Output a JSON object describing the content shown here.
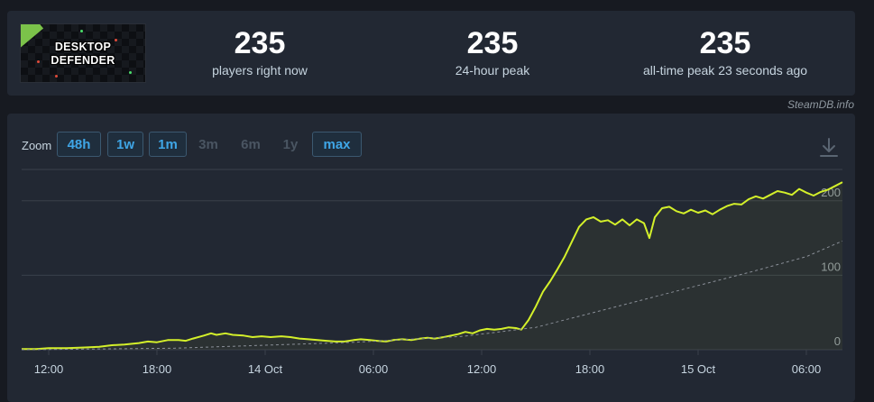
{
  "game": {
    "logo_line1": "DESKTOP",
    "logo_line2": "DEFENDER",
    "logo_accent": "#7bc24a"
  },
  "stats": [
    {
      "value": "235",
      "label": "players right now"
    },
    {
      "value": "235",
      "label": "24-hour peak"
    },
    {
      "value": "235",
      "label": "all-time peak 23 seconds ago"
    }
  ],
  "source": "SteamDB.info",
  "zoom": {
    "label": "Zoom",
    "buttons": [
      {
        "label": "48h",
        "active": true
      },
      {
        "label": "1w",
        "active": true
      },
      {
        "label": "1m",
        "active": true
      },
      {
        "label": "3m",
        "active": false
      },
      {
        "label": "6m",
        "active": false
      },
      {
        "label": "1y",
        "active": false
      },
      {
        "label": "max",
        "active": true
      }
    ]
  },
  "download_icon": "download-icon",
  "colors": {
    "line": "#d4f02a",
    "trend": "#8a8f98",
    "grid": "#3a404b",
    "background": "#222833"
  },
  "chart_data": {
    "type": "line",
    "ylim": [
      0,
      230
    ],
    "y_ticks": [
      0,
      100,
      200
    ],
    "x_ticks": [
      {
        "t": 3,
        "label": "12:00"
      },
      {
        "t": 9,
        "label": "18:00"
      },
      {
        "t": 15,
        "label": "14 Oct"
      },
      {
        "t": 21,
        "label": "06:00"
      },
      {
        "t": 27,
        "label": "12:00"
      },
      {
        "t": 33,
        "label": "18:00"
      },
      {
        "t": 39,
        "label": "15 Oct"
      },
      {
        "t": 45,
        "label": "06:00"
      }
    ],
    "xlim": [
      1.5,
      47
    ],
    "series": [
      {
        "style": "solid",
        "points": [
          [
            1.5,
            1
          ],
          [
            2.3,
            1
          ],
          [
            3.0,
            2
          ],
          [
            4.0,
            2
          ],
          [
            5.0,
            3
          ],
          [
            5.8,
            4
          ],
          [
            6.5,
            6
          ],
          [
            7.2,
            7
          ],
          [
            8.0,
            9
          ],
          [
            8.5,
            11
          ],
          [
            9.0,
            10
          ],
          [
            9.6,
            13
          ],
          [
            10.2,
            13
          ],
          [
            10.6,
            12
          ],
          [
            11.0,
            15
          ],
          [
            11.6,
            19
          ],
          [
            12.0,
            22
          ],
          [
            12.3,
            20
          ],
          [
            12.8,
            22
          ],
          [
            13.2,
            20
          ],
          [
            13.8,
            19
          ],
          [
            14.3,
            17
          ],
          [
            14.8,
            18
          ],
          [
            15.3,
            17
          ],
          [
            15.9,
            18
          ],
          [
            16.4,
            17
          ],
          [
            16.9,
            15
          ],
          [
            17.4,
            14
          ],
          [
            17.9,
            13
          ],
          [
            18.4,
            12
          ],
          [
            18.9,
            11
          ],
          [
            19.4,
            11
          ],
          [
            19.9,
            13
          ],
          [
            20.3,
            14
          ],
          [
            20.8,
            13
          ],
          [
            21.2,
            12
          ],
          [
            21.7,
            11
          ],
          [
            22.1,
            13
          ],
          [
            22.6,
            14
          ],
          [
            23.1,
            13
          ],
          [
            23.6,
            15
          ],
          [
            24.0,
            16
          ],
          [
            24.4,
            15
          ],
          [
            24.9,
            17
          ],
          [
            25.3,
            19
          ],
          [
            25.7,
            21
          ],
          [
            26.1,
            24
          ],
          [
            26.5,
            22
          ],
          [
            26.9,
            26
          ],
          [
            27.3,
            28
          ],
          [
            27.7,
            27
          ],
          [
            28.1,
            28
          ],
          [
            28.5,
            30
          ],
          [
            28.9,
            29
          ],
          [
            29.2,
            27
          ],
          [
            29.6,
            40
          ],
          [
            30.0,
            58
          ],
          [
            30.4,
            78
          ],
          [
            30.8,
            92
          ],
          [
            31.2,
            108
          ],
          [
            31.6,
            125
          ],
          [
            32.0,
            145
          ],
          [
            32.4,
            165
          ],
          [
            32.8,
            175
          ],
          [
            33.2,
            178
          ],
          [
            33.6,
            172
          ],
          [
            34.0,
            174
          ],
          [
            34.4,
            168
          ],
          [
            34.8,
            175
          ],
          [
            35.2,
            167
          ],
          [
            35.6,
            175
          ],
          [
            36.0,
            170
          ],
          [
            36.3,
            150
          ],
          [
            36.6,
            178
          ],
          [
            37.0,
            190
          ],
          [
            37.4,
            192
          ],
          [
            37.8,
            186
          ],
          [
            38.2,
            183
          ],
          [
            38.6,
            188
          ],
          [
            39.0,
            184
          ],
          [
            39.4,
            187
          ],
          [
            39.8,
            182
          ],
          [
            40.2,
            188
          ],
          [
            40.6,
            193
          ],
          [
            41.0,
            196
          ],
          [
            41.4,
            195
          ],
          [
            41.8,
            202
          ],
          [
            42.2,
            206
          ],
          [
            42.6,
            203
          ],
          [
            43.0,
            208
          ],
          [
            43.4,
            213
          ],
          [
            43.8,
            211
          ],
          [
            44.2,
            208
          ],
          [
            44.6,
            216
          ],
          [
            45.0,
            211
          ],
          [
            45.4,
            207
          ],
          [
            45.8,
            212
          ],
          [
            46.2,
            215
          ],
          [
            46.6,
            220
          ],
          [
            47.0,
            225
          ]
        ]
      },
      {
        "style": "dashed",
        "points": [
          [
            1.5,
            0
          ],
          [
            10,
            2
          ],
          [
            20,
            10
          ],
          [
            26,
            18
          ],
          [
            30,
            30
          ],
          [
            34,
            55
          ],
          [
            38,
            80
          ],
          [
            42,
            105
          ],
          [
            45,
            125
          ],
          [
            47,
            146
          ]
        ]
      }
    ]
  }
}
